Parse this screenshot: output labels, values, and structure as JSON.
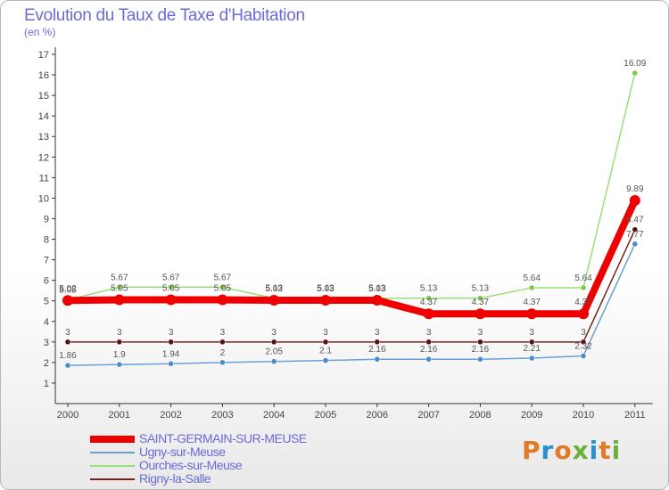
{
  "title": "Evolution du Taux de Taxe d'Habitation",
  "subtitle": "(en %)",
  "logo": {
    "text": "Proxiti",
    "colors": [
      "#e07a26",
      "#2a8fcf",
      "#e07a26",
      "#6ab23c",
      "#2a8fcf",
      "#e07a26",
      "#6ab23c"
    ]
  },
  "chart_data": {
    "type": "line",
    "categories": [
      "2000",
      "2001",
      "2002",
      "2003",
      "2004",
      "2005",
      "2006",
      "2007",
      "2008",
      "2009",
      "2010",
      "2011"
    ],
    "ylim": [
      0,
      17.5
    ],
    "yticks": [
      1,
      2,
      3,
      4,
      5,
      6,
      7,
      8,
      9,
      10,
      11,
      12,
      13,
      14,
      15,
      16,
      17
    ],
    "grid": false,
    "series": [
      {
        "name": "Rigny-la-Salle",
        "color": "#7a2020",
        "point": "#5a1010",
        "width": 1.5,
        "values": [
          3,
          3,
          3,
          3,
          3,
          3,
          3,
          3,
          3,
          3,
          3,
          8.47
        ],
        "labels": [
          "3",
          "3",
          "3",
          "3",
          "3",
          "3",
          "3",
          "3",
          "3",
          "3",
          "3",
          "8.47"
        ]
      },
      {
        "name": "Ugny-sur-Meuse",
        "color": "#6a9fd0",
        "point": "#4a8ac8",
        "width": 1.5,
        "values": [
          1.86,
          1.9,
          1.94,
          2,
          2.05,
          2.1,
          2.16,
          2.16,
          2.16,
          2.21,
          2.32,
          7.77
        ],
        "labels": [
          "1.86",
          "1.9",
          "1.94",
          "2",
          "2.05",
          "2.1",
          "2.16",
          "2.16",
          "2.16",
          "2.21",
          "2.32",
          "7.77"
        ]
      },
      {
        "name": "Ourches-sur-Meuse",
        "color": "#9ade7a",
        "point": "#7cc94a",
        "width": 1.5,
        "values": [
          5.05,
          5.67,
          5.67,
          5.67,
          5.13,
          5.13,
          5.13,
          5.13,
          5.13,
          5.64,
          5.64,
          16.09
        ],
        "labels": [
          "5.05",
          "5.67",
          "5.67",
          "5.67",
          "5.13",
          "5.13",
          "5.13",
          "5.13",
          "5.13",
          "5.64",
          "5.64",
          "16.09"
        ]
      },
      {
        "name": "SAINT-GERMAIN-SUR-MEUSE",
        "color": "#ee0000",
        "point": "#ee0000",
        "width": 8,
        "values": [
          5.02,
          5.05,
          5.05,
          5.05,
          5.03,
          5.03,
          5.03,
          4.37,
          4.37,
          4.37,
          4.37,
          9.89
        ],
        "labels": [
          "5.02",
          "5.05",
          "5.05",
          "5.05",
          "5.03",
          "5.03",
          "5.03",
          "4.37",
          "4.37",
          "4.37",
          "4.37",
          "9.89"
        ]
      }
    ],
    "legend_order": [
      "SAINT-GERMAIN-SUR-MEUSE",
      "Ugny-sur-Meuse",
      "Ourches-sur-Meuse",
      "Rigny-la-Salle"
    ]
  }
}
